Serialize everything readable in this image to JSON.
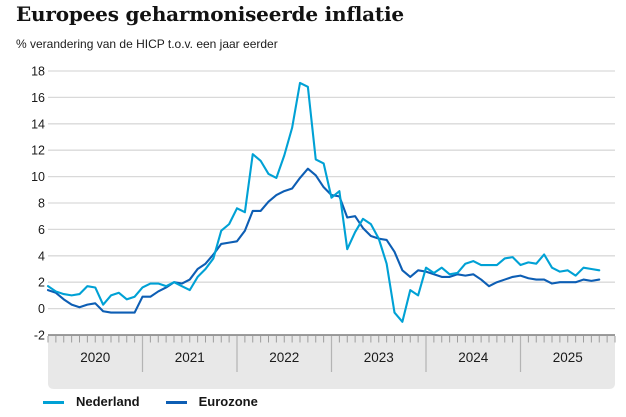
{
  "title": "Europees geharmoniseerde inflatie",
  "subtitle": "% verandering van de HICP t.o.v. een jaar eerder",
  "legend": {
    "items": [
      {
        "label": "Nederland",
        "color": "#00a1d5"
      },
      {
        "label": "Eurozone",
        "color": "#0d5eb4"
      }
    ]
  },
  "colors": {
    "grid": "#d9d9d9",
    "band_fill": "#e8e8e8",
    "band_top_border": "#7d7d7d",
    "month_tick": "#9e9e9e",
    "year_separator": "#b4b4b4",
    "axis_text": "#1a1a1a"
  },
  "chart_data": {
    "type": "line",
    "title": "Europees geharmoniseerde inflatie",
    "subtitle": "% verandering van de HICP t.o.v. een jaar eerder",
    "x_frequency": "monthly",
    "x_start": "2020-01",
    "x_end": "2025-11",
    "year_labels": [
      "2020",
      "2021",
      "2022",
      "2023",
      "2024",
      "2025"
    ],
    "ylim": [
      -2,
      18
    ],
    "yticks": [
      18,
      16,
      14,
      12,
      10,
      8,
      6,
      4,
      2,
      0,
      -2
    ],
    "grid": true,
    "legend_position": "bottom-left",
    "series": [
      {
        "name": "Nederland",
        "color": "#00a1d5",
        "values": [
          1.7,
          1.3,
          1.1,
          1.0,
          1.1,
          1.7,
          1.6,
          0.3,
          1.0,
          1.2,
          0.7,
          0.9,
          1.6,
          1.9,
          1.9,
          1.7,
          2.0,
          1.7,
          1.4,
          2.4,
          3.0,
          3.8,
          5.9,
          6.4,
          7.6,
          7.3,
          11.7,
          11.2,
          10.2,
          9.9,
          11.6,
          13.7,
          17.1,
          16.8,
          11.3,
          11.0,
          8.4,
          8.9,
          4.5,
          5.8,
          6.8,
          6.4,
          5.3,
          3.4,
          -0.3,
          -1.0,
          1.4,
          1.0,
          3.1,
          2.7,
          3.1,
          2.6,
          2.7,
          3.4,
          3.6,
          3.3,
          3.3,
          3.3,
          3.8,
          3.9,
          3.3,
          3.5,
          3.4,
          4.1,
          3.1,
          2.8,
          2.9,
          2.5,
          3.1,
          3.0,
          2.9
        ]
      },
      {
        "name": "Eurozone",
        "color": "#0d5eb4",
        "values": [
          1.4,
          1.2,
          0.7,
          0.3,
          0.1,
          0.3,
          0.4,
          -0.2,
          -0.3,
          -0.3,
          -0.3,
          -0.3,
          0.9,
          0.9,
          1.3,
          1.6,
          2.0,
          1.9,
          2.2,
          3.0,
          3.4,
          4.1,
          4.9,
          5.0,
          5.1,
          5.9,
          7.4,
          7.4,
          8.1,
          8.6,
          8.9,
          9.1,
          9.9,
          10.6,
          10.1,
          9.2,
          8.6,
          8.5,
          6.9,
          7.0,
          6.1,
          5.5,
          5.3,
          5.2,
          4.3,
          2.9,
          2.4,
          2.9,
          2.8,
          2.6,
          2.4,
          2.4,
          2.6,
          2.5,
          2.6,
          2.2,
          1.7,
          2.0,
          2.2,
          2.4,
          2.5,
          2.3,
          2.2,
          2.2,
          1.9,
          2.0,
          2.0,
          2.0,
          2.2,
          2.1,
          2.2
        ]
      }
    ]
  }
}
